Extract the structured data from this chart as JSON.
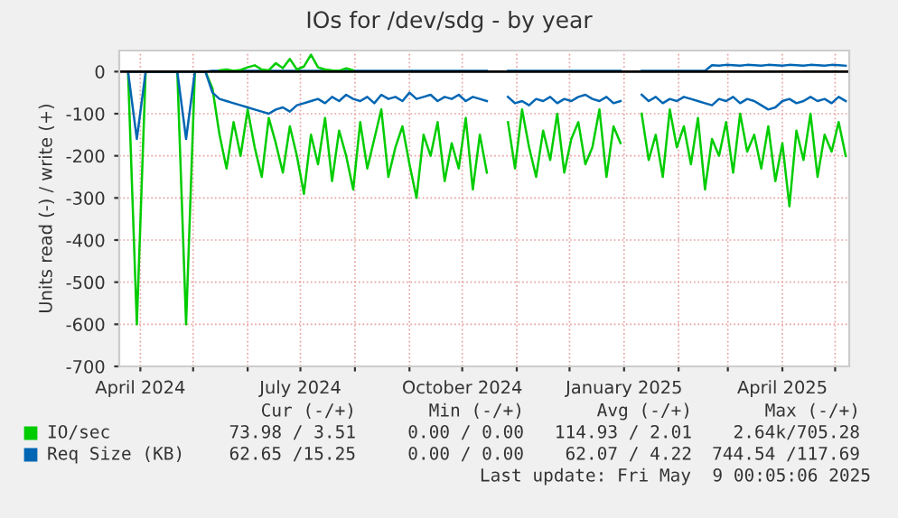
{
  "chart_data": {
    "type": "line",
    "title": "IOs for /dev/sdg - by year",
    "ylabel": "Units read (-) / write (+)",
    "x": [
      "2024-03-25",
      "2024-03-30",
      "2024-04-04",
      "2024-04-22",
      "2024-04-27",
      "2024-05-02",
      "2024-05-08",
      "2024-05-12",
      "2024-05-16",
      "2024-05-20",
      "2024-05-24",
      "2024-05-28",
      "2024-06-01",
      "2024-06-05",
      "2024-06-09",
      "2024-06-13",
      "2024-06-17",
      "2024-06-21",
      "2024-06-25",
      "2024-06-29",
      "2024-07-03",
      "2024-07-07",
      "2024-07-11",
      "2024-07-15",
      "2024-07-19",
      "2024-07-23",
      "2024-07-27",
      "2024-07-31",
      "2024-08-04",
      "2024-08-08",
      "2024-08-12",
      "2024-08-16",
      "2024-08-20",
      "2024-08-24",
      "2024-08-28",
      "2024-09-01",
      "2024-09-05",
      "2024-09-09",
      "2024-09-13",
      "2024-09-17",
      "2024-09-21",
      "2024-09-25",
      "2024-09-29",
      "2024-10-03",
      "2024-10-07",
      "2024-10-11",
      "2024-10-15",
      "2024-10-19",
      "2024-10-23",
      "2024-10-27",
      "2024-10-31",
      "2024-11-04",
      "2024-11-08",
      "2024-11-12",
      "2024-11-16",
      "2024-11-20",
      "2024-11-24",
      "2024-11-28",
      "2024-12-02",
      "2024-12-06",
      "2024-12-10",
      "2024-12-14",
      "2024-12-18",
      "2024-12-22",
      "2024-12-26",
      "2024-12-30",
      "2025-01-03",
      "2025-01-07",
      "2025-01-11",
      "2025-01-15",
      "2025-01-19",
      "2025-01-23",
      "2025-01-27",
      "2025-01-31",
      "2025-02-04",
      "2025-02-08",
      "2025-02-12",
      "2025-02-16",
      "2025-02-20",
      "2025-02-24",
      "2025-02-28",
      "2025-03-04",
      "2025-03-08",
      "2025-03-12",
      "2025-03-16",
      "2025-03-20",
      "2025-03-24",
      "2025-03-28",
      "2025-04-01",
      "2025-04-05",
      "2025-04-09",
      "2025-04-13",
      "2025-04-17",
      "2025-04-21",
      "2025-04-25",
      "2025-04-29",
      "2025-05-03",
      "2025-05-07"
    ],
    "series": [
      {
        "name": "IO/sec",
        "color": "#00cc00",
        "values": [
          0,
          -600,
          0,
          0,
          -600,
          0,
          0,
          -40,
          -150,
          -230,
          -120,
          -200,
          -90,
          -180,
          -250,
          -110,
          -170,
          -240,
          -130,
          -200,
          -290,
          -150,
          -220,
          -110,
          -260,
          -140,
          -200,
          -280,
          -120,
          -230,
          -160,
          -90,
          -250,
          -180,
          -130,
          -220,
          -300,
          -150,
          -200,
          -120,
          -260,
          -170,
          -230,
          -110,
          -280,
          -150,
          -240,
          null,
          null,
          -120,
          -230,
          -90,
          -180,
          -250,
          -140,
          -210,
          -100,
          -240,
          -160,
          -120,
          -220,
          -180,
          -90,
          -250,
          -130,
          -170,
          null,
          null,
          -100,
          -210,
          -150,
          -250,
          -90,
          -180,
          -130,
          -220,
          -110,
          -280,
          -160,
          -200,
          -120,
          -240,
          -100,
          -190,
          -150,
          -230,
          -130,
          -260,
          -170,
          -320,
          -140,
          -210,
          -100,
          -250,
          -150,
          -190,
          -120,
          -200
        ]
      },
      {
        "name": "Req Size (KB)",
        "color": "#0066b3",
        "values": [
          0,
          -160,
          0,
          0,
          -160,
          0,
          0,
          -50,
          -65,
          -70,
          -75,
          -80,
          -85,
          -90,
          -95,
          -100,
          -90,
          -85,
          -95,
          -80,
          -75,
          -70,
          -65,
          -75,
          -60,
          -70,
          -55,
          -65,
          -70,
          -60,
          -75,
          -55,
          -65,
          -60,
          -70,
          -50,
          -65,
          -60,
          -55,
          -70,
          -60,
          -65,
          -55,
          -70,
          -60,
          -65,
          -70,
          null,
          null,
          -60,
          -75,
          -70,
          -80,
          -65,
          -70,
          -60,
          -75,
          -65,
          -70,
          -60,
          -55,
          -65,
          -70,
          -60,
          -75,
          -70,
          null,
          null,
          -55,
          -70,
          -60,
          -75,
          -65,
          -70,
          -60,
          -65,
          -70,
          -75,
          -80,
          -65,
          -70,
          -60,
          -75,
          -65,
          -70,
          -80,
          -90,
          -85,
          -70,
          -65,
          -75,
          -70,
          -60,
          -70,
          -65,
          -75,
          -60,
          -70
        ]
      },
      {
        "color": "#0066b3",
        "values": [
          0,
          0,
          0,
          0,
          0,
          0,
          0,
          2,
          2,
          2,
          2,
          2,
          2,
          2,
          2,
          2,
          2,
          2,
          2,
          2,
          2,
          2,
          2,
          2,
          2,
          2,
          2,
          2,
          2,
          2,
          2,
          2,
          2,
          2,
          2,
          2,
          2,
          2,
          2,
          2,
          2,
          2,
          2,
          2,
          2,
          2,
          2,
          null,
          null,
          2,
          2,
          2,
          2,
          2,
          2,
          2,
          2,
          2,
          2,
          2,
          2,
          2,
          2,
          2,
          2,
          2,
          null,
          null,
          2,
          2,
          2,
          2,
          2,
          2,
          2,
          2,
          2,
          2,
          15,
          14,
          16,
          15,
          14,
          16,
          15,
          14,
          16,
          15,
          14,
          16,
          15,
          14,
          16,
          15,
          14,
          16,
          15,
          14
        ]
      },
      {
        "color": "#00cc00",
        "values": [
          null,
          null,
          null,
          null,
          null,
          null,
          null,
          null,
          3,
          5,
          2,
          4,
          10,
          15,
          5,
          3,
          20,
          8,
          30,
          5,
          12,
          40,
          10,
          5,
          3,
          2,
          8,
          3,
          null,
          null,
          null,
          null,
          null,
          null,
          null,
          null,
          null,
          null,
          null,
          null,
          null,
          null,
          null,
          null,
          null,
          null,
          null,
          null,
          null,
          null,
          null,
          null,
          null,
          null,
          null,
          null,
          null,
          null,
          null,
          null,
          null,
          null,
          null,
          null,
          null,
          null,
          null,
          null,
          null,
          null,
          null,
          null,
          null,
          null,
          null,
          null,
          null,
          null,
          null,
          null,
          null,
          null,
          null,
          null,
          null,
          null,
          null,
          null,
          null,
          null,
          null,
          null,
          null,
          null,
          null,
          null,
          null,
          null
        ]
      }
    ],
    "xlim": [
      "2024-03-20",
      "2025-05-09"
    ],
    "xticks": [
      {
        "value": "2024-04-01",
        "label": "April 2024"
      },
      {
        "value": "2024-05-01",
        "label": null
      },
      {
        "value": "2024-06-01",
        "label": null
      },
      {
        "value": "2024-07-01",
        "label": "July 2024"
      },
      {
        "value": "2024-08-01",
        "label": null
      },
      {
        "value": "2024-09-01",
        "label": null
      },
      {
        "value": "2024-10-01",
        "label": "October 2024"
      },
      {
        "value": "2024-11-01",
        "label": null
      },
      {
        "value": "2024-12-01",
        "label": null
      },
      {
        "value": "2025-01-01",
        "label": "January 2025"
      },
      {
        "value": "2025-02-01",
        "label": null
      },
      {
        "value": "2025-03-01",
        "label": null
      },
      {
        "value": "2025-04-01",
        "label": "April 2025"
      },
      {
        "value": "2025-05-01",
        "label": null
      }
    ],
    "ylim": [
      -700,
      50
    ],
    "yticks": [
      -700,
      -600,
      -500,
      -400,
      -300,
      -200,
      -100,
      0
    ],
    "grid": true,
    "legend": "bottom",
    "line_style": "solid",
    "annotations": [
      "Cur (-/+)",
      "Min (-/+)",
      "Avg (-/+)",
      "Max (-/+)",
      "73.98 / 3.51",
      "0.00 / 0.00",
      "114.93 / 2.01",
      "2.64k/705.28",
      "62.65 /15.25",
      "0.00 / 0.00",
      "62.07 / 4.22",
      "744.54 /117.69",
      "Last update: Fri May  9 00:05:06 2025"
    ]
  }
}
